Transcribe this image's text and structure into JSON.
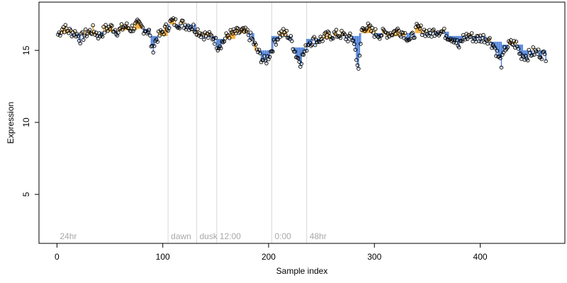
{
  "chart_data": {
    "type": "scatter",
    "xlabel": "Sample index",
    "ylabel": "Expression",
    "xlim": [
      -17,
      480
    ],
    "ylim": [
      1.6,
      18.35
    ],
    "x_ticks": [
      0,
      100,
      200,
      300,
      400
    ],
    "x_tick_labels": [
      "0",
      "100",
      "200",
      "300",
      "400"
    ],
    "y_ticks": [
      5,
      10,
      15
    ],
    "y_tick_labels": [
      "5",
      "10",
      "15"
    ],
    "period_markers": [
      {
        "label": "24hr",
        "x": 0
      },
      {
        "label": "dawn",
        "x": 105
      },
      {
        "label": "dusk",
        "x": 132
      },
      {
        "label": "12:00",
        "x": 151
      },
      {
        "label": "0:00",
        "x": 203
      },
      {
        "label": "48hr",
        "x": 236
      }
    ],
    "colors": {
      "above_mean": "#f5a623",
      "below_mean": "#4a7fd8",
      "near_mean": "#9a9a9a",
      "points": "#000000",
      "grid": "#d8d8d8"
    },
    "segments": [
      {
        "range": [
          1,
          20
        ],
        "mean": 16.2
      },
      {
        "range": [
          21,
          40
        ],
        "mean": 16.1
      },
      {
        "range": [
          41,
          60
        ],
        "mean": 16.3
      },
      {
        "range": [
          61,
          75
        ],
        "mean": 16.4
      },
      {
        "range": [
          76,
          88
        ],
        "mean": 16.5
      },
      {
        "range": [
          89,
          104
        ],
        "mean": 16.0
      },
      {
        "range": [
          105,
          131
        ],
        "mean": 16.8
      },
      {
        "range": [
          132,
          150
        ],
        "mean": 16.0
      },
      {
        "range": [
          151,
          168
        ],
        "mean": 15.8
      },
      {
        "range": [
          169,
          186
        ],
        "mean": 16.2
      },
      {
        "range": [
          187,
          202
        ],
        "mean": 15.0
      },
      {
        "range": [
          203,
          222
        ],
        "mean": 16.0
      },
      {
        "range": [
          223,
          235
        ],
        "mean": 15.2
      },
      {
        "range": [
          236,
          260
        ],
        "mean": 15.8
      },
      {
        "range": [
          261,
          285
        ],
        "mean": 16.0
      },
      {
        "range": [
          286,
          310
        ],
        "mean": 16.2
      },
      {
        "range": [
          311,
          330
        ],
        "mean": 16.0
      },
      {
        "range": [
          331,
          350
        ],
        "mean": 16.2
      },
      {
        "range": [
          351,
          370
        ],
        "mean": 16.3
      },
      {
        "range": [
          371,
          390
        ],
        "mean": 16.0
      },
      {
        "range": [
          391,
          405
        ],
        "mean": 16.0
      },
      {
        "range": [
          406,
          420
        ],
        "mean": 15.6
      },
      {
        "range": [
          421,
          440
        ],
        "mean": 15.4
      },
      {
        "range": [
          441,
          462
        ],
        "mean": 15.0
      }
    ],
    "knots": [
      [
        1,
        16.1
      ],
      [
        6,
        16.6
      ],
      [
        12,
        16.3
      ],
      [
        18,
        16.2
      ],
      [
        22,
        15.8
      ],
      [
        28,
        16.2
      ],
      [
        34,
        16.4
      ],
      [
        40,
        16.0
      ],
      [
        46,
        16.5
      ],
      [
        52,
        16.6
      ],
      [
        58,
        16.3
      ],
      [
        64,
        16.7
      ],
      [
        70,
        16.5
      ],
      [
        76,
        16.8
      ],
      [
        82,
        16.5
      ],
      [
        87,
        16.3
      ],
      [
        90,
        15.0
      ],
      [
        94,
        15.8
      ],
      [
        100,
        16.3
      ],
      [
        104,
        16.6
      ],
      [
        108,
        17.0
      ],
      [
        114,
        16.9
      ],
      [
        120,
        16.8
      ],
      [
        126,
        16.7
      ],
      [
        131,
        16.5
      ],
      [
        136,
        16.2
      ],
      [
        142,
        16.0
      ],
      [
        148,
        15.9
      ],
      [
        152,
        15.3
      ],
      [
        157,
        15.6
      ],
      [
        162,
        16.1
      ],
      [
        168,
        16.2
      ],
      [
        174,
        16.3
      ],
      [
        180,
        16.2
      ],
      [
        184,
        15.8
      ],
      [
        188,
        15.2
      ],
      [
        193,
        14.5
      ],
      [
        197,
        14.2
      ],
      [
        202,
        14.9
      ],
      [
        206,
        15.6
      ],
      [
        210,
        16.1
      ],
      [
        214,
        16.2
      ],
      [
        218,
        16.1
      ],
      [
        222,
        15.6
      ],
      [
        226,
        14.7
      ],
      [
        230,
        14.2
      ],
      [
        234,
        14.9
      ],
      [
        238,
        15.6
      ],
      [
        244,
        15.7
      ],
      [
        250,
        15.8
      ],
      [
        256,
        16.0
      ],
      [
        262,
        16.1
      ],
      [
        268,
        16.1
      ],
      [
        274,
        15.9
      ],
      [
        280,
        15.8
      ],
      [
        283,
        14.6
      ],
      [
        285,
        13.5
      ],
      [
        288,
        16.4
      ],
      [
        292,
        16.7
      ],
      [
        298,
        16.3
      ],
      [
        304,
        16.1
      ],
      [
        310,
        16.2
      ],
      [
        316,
        16.2
      ],
      [
        322,
        16.4
      ],
      [
        328,
        16.2
      ],
      [
        334,
        15.7
      ],
      [
        340,
        16.5
      ],
      [
        346,
        16.4
      ],
      [
        352,
        16.1
      ],
      [
        358,
        16.4
      ],
      [
        364,
        16.3
      ],
      [
        370,
        16.0
      ],
      [
        376,
        15.8
      ],
      [
        380,
        15.2
      ],
      [
        384,
        15.9
      ],
      [
        390,
        16.0
      ],
      [
        396,
        15.8
      ],
      [
        402,
        15.9
      ],
      [
        408,
        15.8
      ],
      [
        413,
        15.3
      ],
      [
        417,
        14.6
      ],
      [
        420,
        14.1
      ],
      [
        424,
        15.2
      ],
      [
        430,
        15.5
      ],
      [
        434,
        15.4
      ],
      [
        438,
        14.7
      ],
      [
        444,
        14.6
      ],
      [
        450,
        14.9
      ],
      [
        456,
        14.8
      ],
      [
        462,
        14.6
      ]
    ],
    "n_points": 462
  }
}
